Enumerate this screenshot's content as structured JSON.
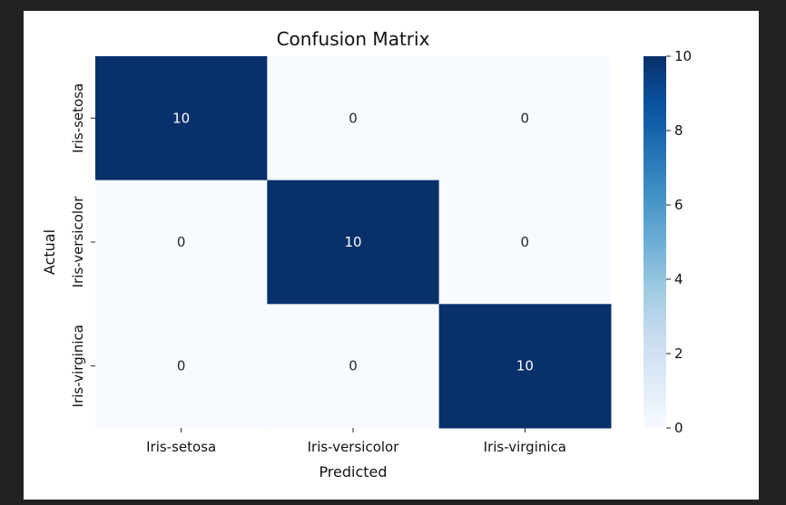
{
  "chart_data": {
    "type": "heatmap",
    "title": "Confusion Matrix",
    "xlabel": "Predicted",
    "ylabel": "Actual",
    "x_categories": [
      "Iris-setosa",
      "Iris-versicolor",
      "Iris-virginica"
    ],
    "y_categories": [
      "Iris-setosa",
      "Iris-versicolor",
      "Iris-virginica"
    ],
    "values": [
      [
        10,
        0,
        0
      ],
      [
        0,
        10,
        0
      ],
      [
        0,
        0,
        10
      ]
    ],
    "colormap": "Blues",
    "color_low": "#f7fbff",
    "color_high": "#08306b",
    "colorbar": {
      "range": [
        0,
        10
      ],
      "ticks": [
        0,
        2,
        4,
        6,
        8,
        10
      ]
    }
  }
}
